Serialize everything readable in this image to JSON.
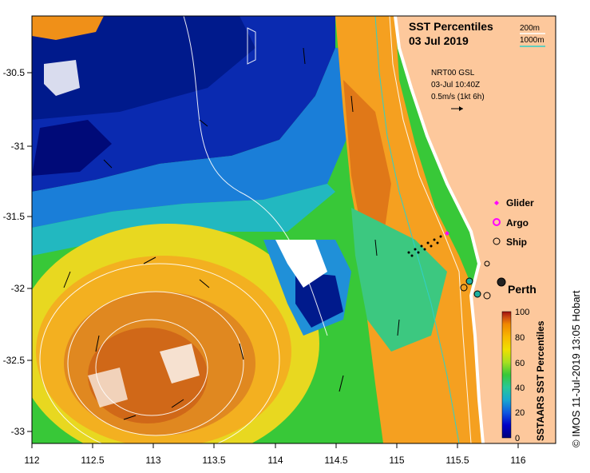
{
  "title": {
    "line1": "SST Percentiles",
    "line2": "03 Jul 2019"
  },
  "depth_legend": [
    {
      "label": "200m",
      "color": "#ffffff"
    },
    {
      "label": "1000m",
      "color": "#30d0c8"
    }
  ],
  "current_info": {
    "line1": "NRT00 GSL",
    "line2": "03-Jul 10:40Z",
    "line3": "0.5m/s (1kt 6h)"
  },
  "platform_legend": [
    {
      "label": "Glider",
      "symbol": "diamond",
      "color": "#ff00ff"
    },
    {
      "label": "Argo",
      "symbol": "ring",
      "color": "#ff00ff"
    },
    {
      "label": "Ship",
      "symbol": "open-circle",
      "color": "#000000"
    }
  ],
  "city": {
    "label": "Perth",
    "lon": 115.86,
    "lat": -31.95
  },
  "axes": {
    "x_ticks": [
      "112",
      "112.5",
      "113",
      "113.5",
      "114",
      "114.5",
      "115",
      "115.5",
      "116"
    ],
    "y_ticks": [
      "-30.5",
      "-31",
      "-31.5",
      "-32",
      "-32.5",
      "-33"
    ],
    "lon_range": [
      112,
      116.3
    ],
    "lat_range": [
      -33.1,
      -30.05
    ]
  },
  "colorbar": {
    "label": "SSTAARS SST Percentiles",
    "ticks": [
      "100",
      "80",
      "60",
      "40",
      "20",
      "0"
    ],
    "colors": [
      "#00007a",
      "#0000c8",
      "#1058e0",
      "#18a8d0",
      "#28c898",
      "#38c838",
      "#a8e020",
      "#f0e000",
      "#f8b800",
      "#f08800",
      "#d05010",
      "#a01010"
    ]
  },
  "credit": "© IMOS 11-Jul-2019 13:05 Hobart",
  "colors": {
    "land": "#fdc89c",
    "map_edge": "#000000"
  }
}
